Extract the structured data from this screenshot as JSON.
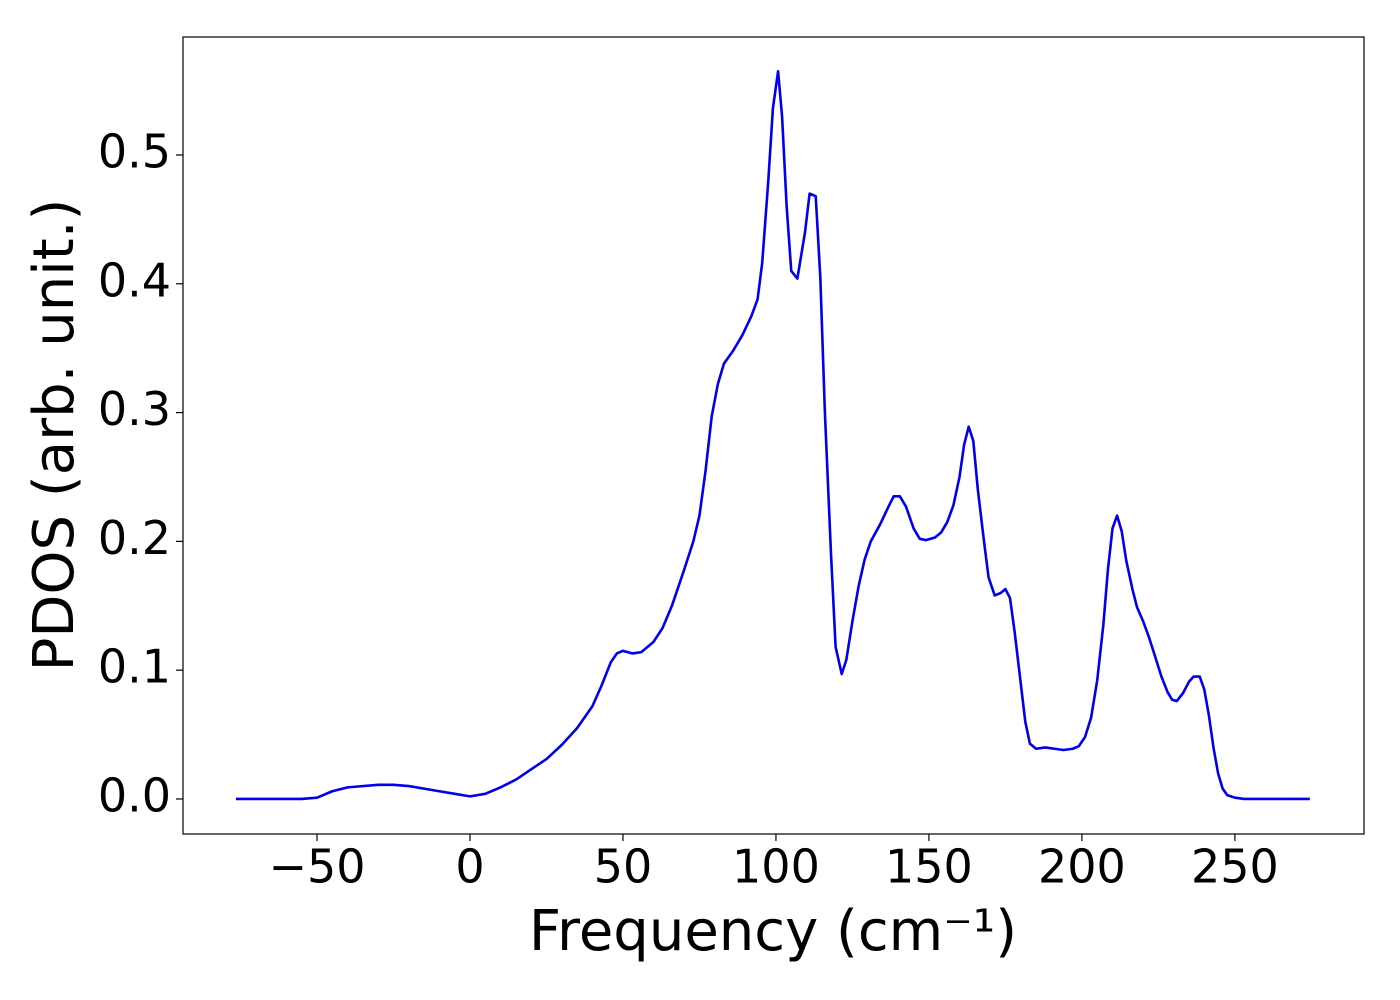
{
  "chart_data": {
    "type": "line",
    "x_label": "Frequency (cm⁻¹)",
    "y_label": "PDOS (arb. unit.)",
    "xlim": [
      -93.8,
      292.2
    ],
    "ylim": [
      -0.0272,
      0.5916
    ],
    "xticks": [
      {
        "value": -50,
        "label": "−50"
      },
      0,
      50,
      100,
      150,
      200,
      250
    ],
    "yticks": [
      {
        "value": 0,
        "label": "0.0"
      },
      0.1,
      0.2,
      0.3,
      0.4,
      0.5
    ],
    "grid": false,
    "series": [
      {
        "color": "#0000ee",
        "x": [
          -76.5,
          -55,
          -50,
          -45,
          -40,
          -30,
          -25,
          -20,
          -10,
          -5,
          0,
          5,
          10,
          15,
          20,
          25,
          30,
          35,
          40,
          43,
          46,
          48,
          50,
          53,
          56,
          60,
          63,
          66,
          70,
          73,
          75,
          77,
          79,
          81,
          83,
          86,
          89,
          92,
          94,
          95.5,
          97.5,
          99,
          100.7,
          102,
          103.5,
          105,
          107,
          109.5,
          111,
          113,
          114.5,
          116,
          118,
          119.5,
          121.5,
          123,
          125,
          127,
          129,
          131,
          134,
          137,
          138.5,
          140.5,
          142.5,
          145,
          147,
          149,
          152,
          154,
          156,
          158,
          160,
          161.5,
          163,
          164.5,
          166,
          168,
          169.5,
          171.5,
          173.5,
          175,
          176.5,
          178,
          180,
          181.5,
          183,
          185,
          188,
          191,
          194,
          197,
          199,
          201,
          203,
          205,
          207,
          208.5,
          210,
          211.5,
          213,
          214.5,
          216.5,
          218,
          220,
          222,
          224,
          226,
          228,
          229.5,
          231,
          233,
          235,
          236.5,
          238.5,
          240,
          241.5,
          243,
          244.5,
          246,
          247.5,
          250,
          253,
          274.5
        ],
        "values": [
          0,
          0,
          0.001,
          0.006,
          0.009,
          0.011,
          0.011,
          0.01,
          0.006,
          0.004,
          0.002,
          0.004,
          0.009,
          0.015,
          0.023,
          0.031,
          0.042,
          0.055,
          0.072,
          0.088,
          0.106,
          0.113,
          0.115,
          0.113,
          0.114,
          0.122,
          0.133,
          0.15,
          0.178,
          0.2,
          0.22,
          0.255,
          0.297,
          0.322,
          0.338,
          0.348,
          0.36,
          0.375,
          0.388,
          0.416,
          0.48,
          0.536,
          0.565,
          0.53,
          0.46,
          0.41,
          0.404,
          0.44,
          0.47,
          0.468,
          0.405,
          0.3,
          0.19,
          0.118,
          0.097,
          0.108,
          0.138,
          0.165,
          0.186,
          0.2,
          0.213,
          0.228,
          0.235,
          0.235,
          0.227,
          0.21,
          0.202,
          0.201,
          0.203,
          0.207,
          0.215,
          0.228,
          0.25,
          0.275,
          0.289,
          0.278,
          0.24,
          0.2,
          0.172,
          0.158,
          0.16,
          0.163,
          0.156,
          0.13,
          0.09,
          0.06,
          0.043,
          0.039,
          0.04,
          0.039,
          0.038,
          0.039,
          0.041,
          0.048,
          0.063,
          0.092,
          0.135,
          0.178,
          0.21,
          0.22,
          0.208,
          0.185,
          0.163,
          0.149,
          0.138,
          0.125,
          0.11,
          0.095,
          0.083,
          0.077,
          0.076,
          0.082,
          0.091,
          0.095,
          0.095,
          0.085,
          0.065,
          0.04,
          0.02,
          0.008,
          0.003,
          0.001,
          0,
          0
        ]
      }
    ]
  }
}
